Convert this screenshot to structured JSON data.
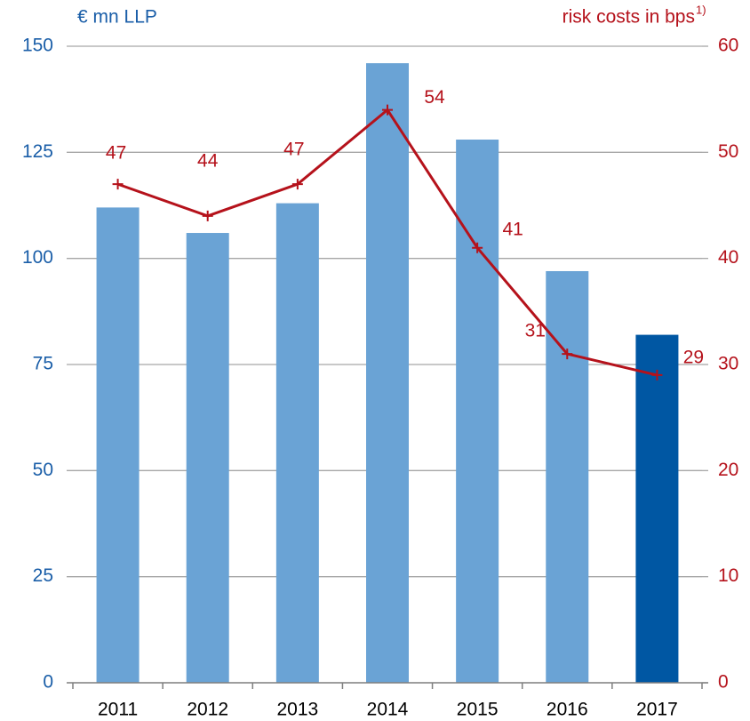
{
  "chart_data": {
    "type": "bar_line",
    "ylabel": "€ mn LLP",
    "y2label": "risk costs in bps",
    "y2label_superscript": "1)",
    "categories": [
      "2011",
      "2012",
      "2013",
      "2014",
      "2015",
      "2016",
      "2017"
    ],
    "series": [
      {
        "type": "bar",
        "colors": [
          "#6aa3d5",
          "#6aa3d5",
          "#6aa3d5",
          "#6aa3d5",
          "#6aa3d5",
          "#6aa3d5",
          "#0057a3"
        ],
        "values": [
          112,
          106,
          113,
          146,
          128,
          97,
          82
        ]
      },
      {
        "type": "line",
        "axis": "y2",
        "color": "#b5121b",
        "values": [
          47,
          44,
          47,
          54,
          41,
          31,
          29
        ]
      }
    ],
    "ylim": [
      0,
      150
    ],
    "yticks": [
      0,
      25,
      50,
      75,
      100,
      125,
      150
    ],
    "y2lim": [
      0,
      60
    ],
    "y2ticks": [
      0,
      10,
      20,
      30,
      40,
      50,
      60
    ],
    "grid": true
  }
}
